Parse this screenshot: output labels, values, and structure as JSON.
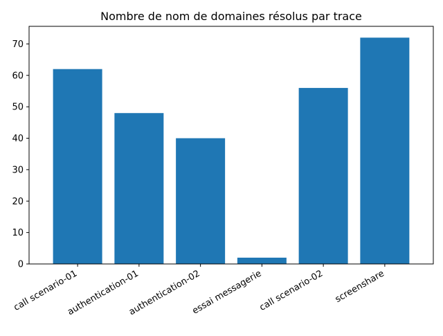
{
  "chart_data": {
    "type": "bar",
    "title": "Nombre de nom de domaines résolus par trace",
    "xlabel": "",
    "ylabel": "",
    "categories": [
      "call scenario-01",
      "authentication-01",
      "authentication-02",
      "essai messagerie",
      "call scenario-02",
      "screenshare"
    ],
    "values": [
      62,
      48,
      40,
      2,
      56,
      72
    ],
    "ylim": [
      0,
      75.6
    ],
    "yticks": [
      0,
      10,
      20,
      30,
      40,
      50,
      60,
      70
    ],
    "bar_color": "#1f77b4",
    "grid": false,
    "legend": "none"
  }
}
